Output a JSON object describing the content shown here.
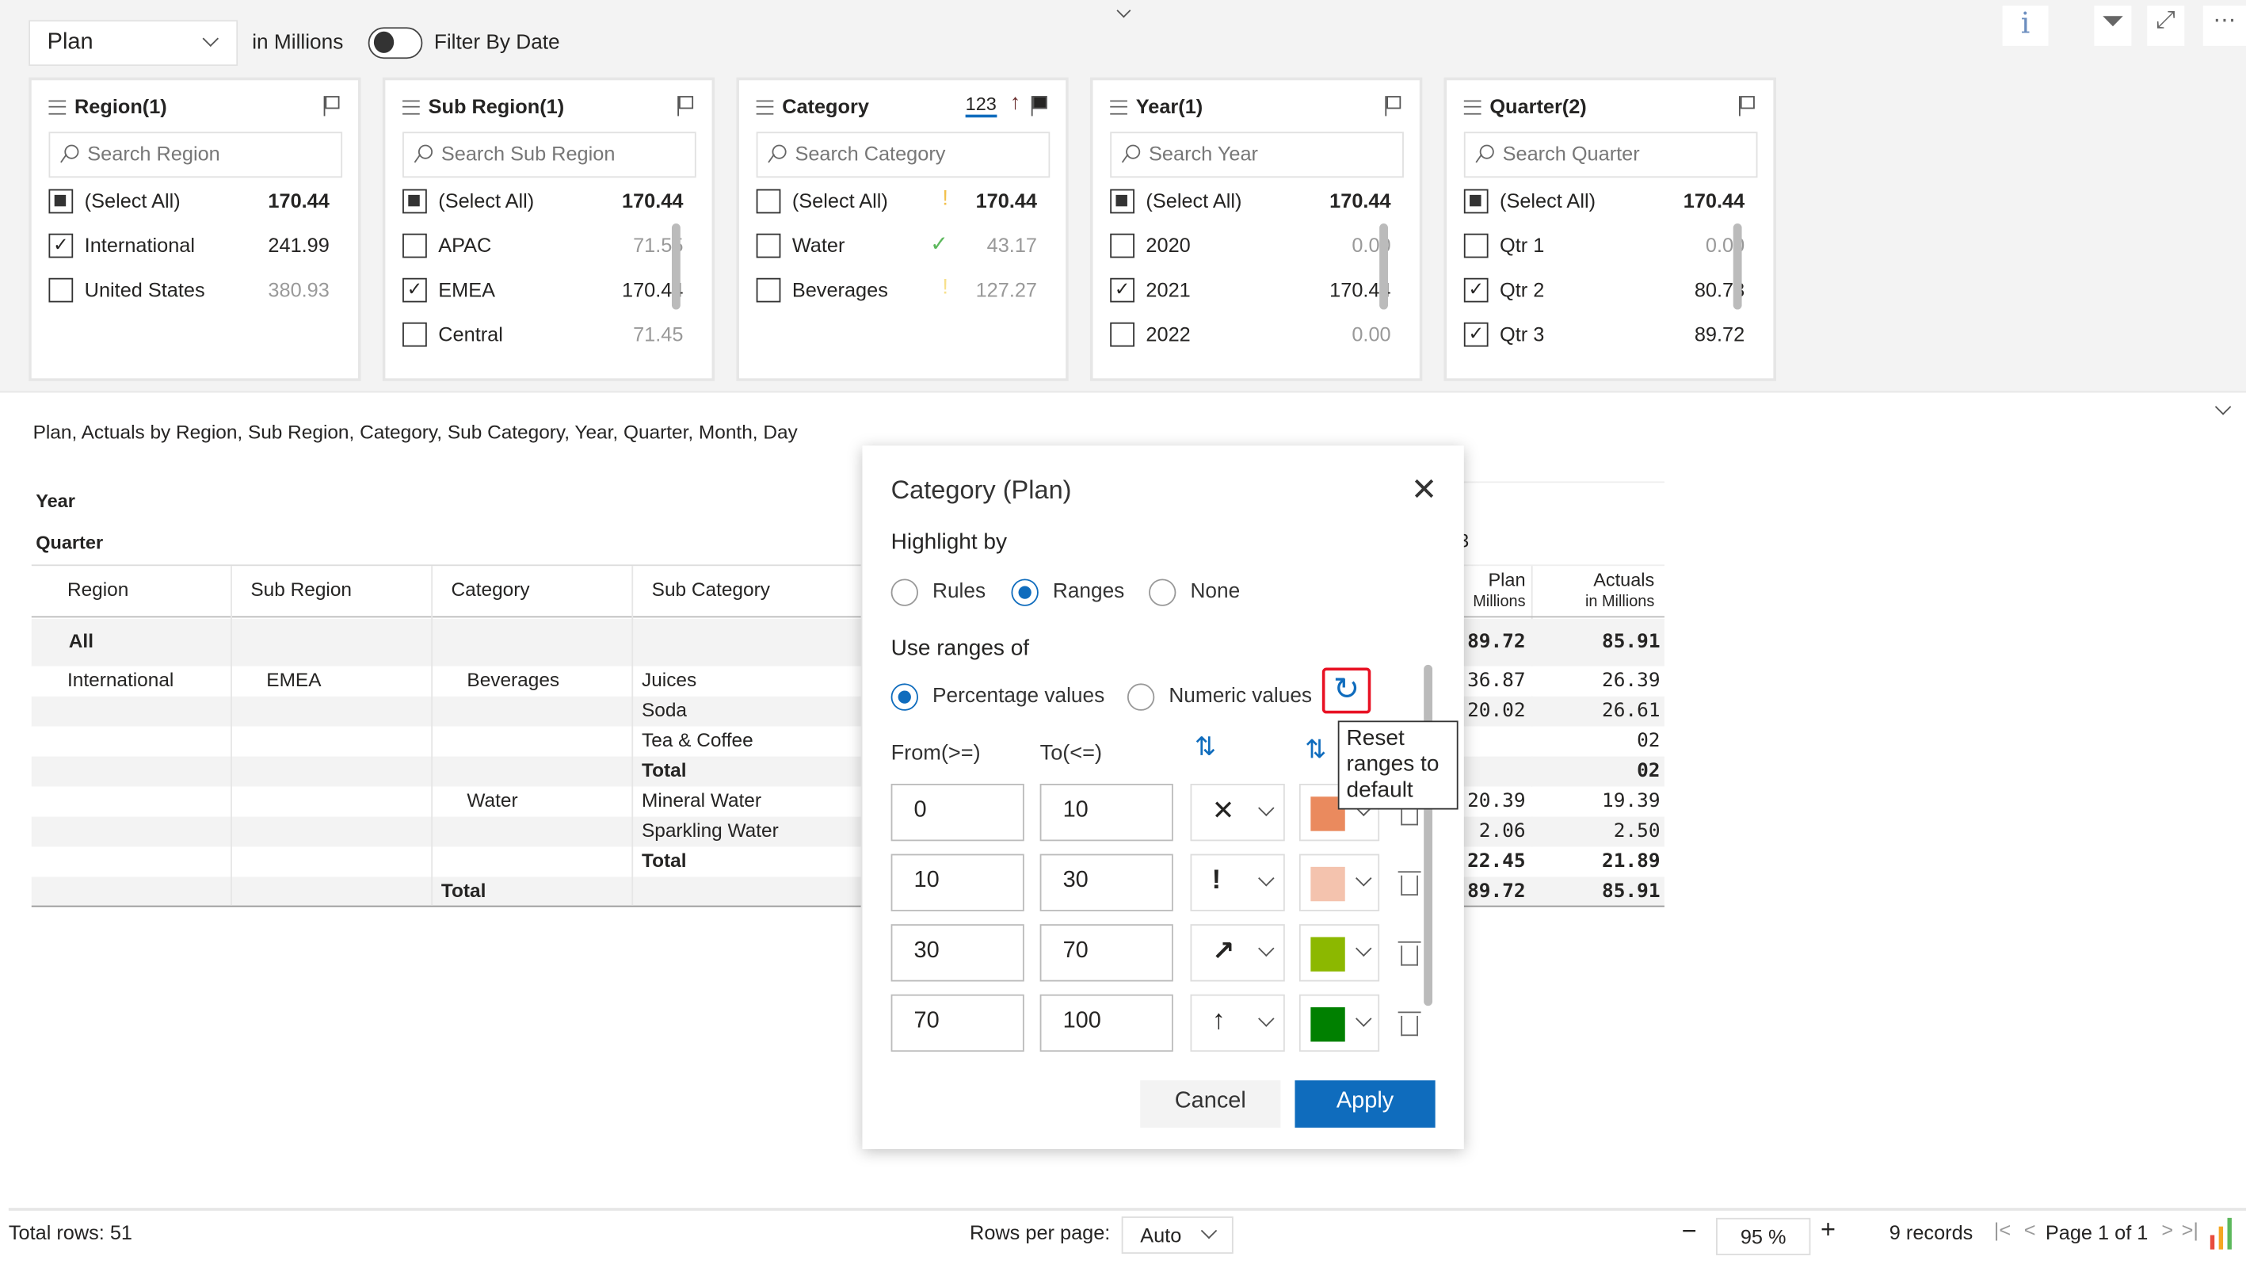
{
  "toolbar": {
    "measure": "Plan",
    "units": "in Millions",
    "filter_by_date": "Filter By Date",
    "filter_by_date_on": false
  },
  "filters": [
    {
      "title": "Region(1)",
      "search": "Search Region",
      "items": [
        {
          "label": "(Select All)",
          "value": "170.44",
          "state": "partial",
          "bold": true
        },
        {
          "label": "International",
          "value": "241.99",
          "state": "checked"
        },
        {
          "label": "United States",
          "value": "380.93",
          "state": "unchecked",
          "muted": true
        }
      ]
    },
    {
      "title": "Sub Region(1)",
      "search": "Search Sub Region",
      "items": [
        {
          "label": "(Select All)",
          "value": "170.44",
          "state": "partial",
          "bold": true
        },
        {
          "label": "APAC",
          "value": "71.55",
          "state": "unchecked",
          "muted": true
        },
        {
          "label": "EMEA",
          "value": "170.44",
          "state": "checked"
        },
        {
          "label": "Central",
          "value": "71.45",
          "state": "unchecked",
          "muted": true
        }
      ]
    },
    {
      "title": "Category",
      "search": "Search Category",
      "sort_label": "123",
      "items": [
        {
          "label": "(Select All)",
          "value": "170.44",
          "state": "unchecked",
          "bold": true,
          "indicator": "!",
          "indicator_color": "#f2c14e"
        },
        {
          "label": "Water",
          "value": "43.17",
          "state": "unchecked",
          "muted": true,
          "indicator": "✓",
          "indicator_color": "#5cb85c"
        },
        {
          "label": "Beverages",
          "value": "127.27",
          "state": "unchecked",
          "muted": true,
          "indicator": "!",
          "indicator_color": "#f7e08c"
        }
      ]
    },
    {
      "title": "Year(1)",
      "search": "Search Year",
      "items": [
        {
          "label": "(Select All)",
          "value": "170.44",
          "state": "partial",
          "bold": true
        },
        {
          "label": "2020",
          "value": "0.00",
          "state": "unchecked",
          "muted": true
        },
        {
          "label": "2021",
          "value": "170.44",
          "state": "checked"
        },
        {
          "label": "2022",
          "value": "0.00",
          "state": "unchecked",
          "muted": true
        }
      ]
    },
    {
      "title": "Quarter(2)",
      "search": "Search Quarter",
      "items": [
        {
          "label": "(Select All)",
          "value": "170.44",
          "state": "partial",
          "bold": true
        },
        {
          "label": "Qtr 1",
          "value": "0.00",
          "state": "unchecked",
          "muted": true
        },
        {
          "label": "Qtr 2",
          "value": "80.73",
          "state": "checked"
        },
        {
          "label": "Qtr 3",
          "value": "89.72",
          "state": "checked"
        }
      ]
    }
  ],
  "report": {
    "title": "Plan, Actuals by Region, Sub Region, Category, Sub Category, Year, Quarter, Month, Day",
    "row_labels": [
      "Year",
      "Quarter"
    ],
    "columns": [
      "Region",
      "Sub Region",
      "Category",
      "Sub Category"
    ],
    "all_label": "All",
    "rows": [
      {
        "region": "International",
        "sub_region": "EMEA",
        "category": "Beverages",
        "sub_category": "Juices"
      },
      {
        "sub_category": "Soda"
      },
      {
        "sub_category": "Tea & Coffee"
      },
      {
        "sub_category": "Total",
        "bold": true
      },
      {
        "category": "Water",
        "sub_category": "Mineral Water"
      },
      {
        "sub_category": "Sparkling Water"
      },
      {
        "sub_category": "Total",
        "bold": true
      },
      {
        "category": "Total",
        "bold": true
      }
    ],
    "partial_header": "3",
    "value_headers": [
      {
        "title": "Plan",
        "sub": "Millions"
      },
      {
        "title": "Actuals",
        "sub": "in Millions"
      }
    ],
    "all_values": [
      "89.72",
      "85.91"
    ],
    "values": [
      [
        "36.87",
        "26.39"
      ],
      [
        "20.02",
        "26.61"
      ],
      [
        "",
        "02"
      ],
      [
        "",
        "02"
      ],
      [
        "20.39",
        "19.39"
      ],
      [
        "2.06",
        "2.50"
      ],
      [
        "22.45",
        "21.89"
      ],
      [
        "89.72",
        "85.91"
      ]
    ]
  },
  "dialog": {
    "title": "Category (Plan)",
    "highlight_by": "Highlight by",
    "highlight_options": [
      "Rules",
      "Ranges",
      "None"
    ],
    "highlight_selected": "Ranges",
    "use_ranges_of": "Use ranges of",
    "range_options": [
      "Percentage values",
      "Numeric values"
    ],
    "range_selected": "Percentage values",
    "reset_tooltip": "Reset ranges to default",
    "from_label": "From(>=)",
    "to_label": "To(<=)",
    "ranges": [
      {
        "from": "0",
        "to": "10",
        "icon": "✕",
        "icon_name": "cross-icon",
        "color": "#ea8a5e"
      },
      {
        "from": "10",
        "to": "30",
        "icon": "!",
        "icon_name": "exclamation-icon",
        "color": "#f4c3ae"
      },
      {
        "from": "30",
        "to": "70",
        "icon": "↗",
        "icon_name": "arrow-up-right-icon",
        "color": "#8cb800"
      },
      {
        "from": "70",
        "to": "100",
        "icon": "↑",
        "icon_name": "arrow-up-icon",
        "color": "#008000"
      }
    ],
    "cancel": "Cancel",
    "apply": "Apply"
  },
  "footer": {
    "total_rows": "Total rows: 51",
    "rows_per_page_label": "Rows per page:",
    "rows_per_page": "Auto",
    "zoom": "95 %",
    "records": "9 records",
    "page": "Page 1 of 1"
  },
  "colors": {
    "accent": "#0f6cbd",
    "highlight_box": "#e81123"
  }
}
